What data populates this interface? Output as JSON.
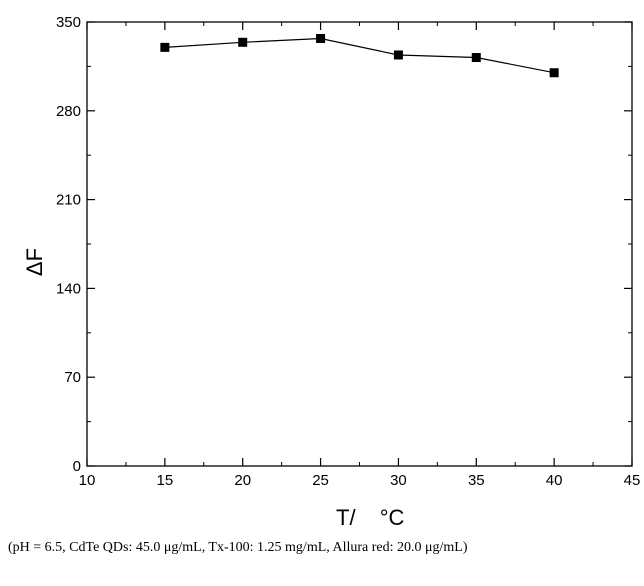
{
  "chart_data": {
    "type": "line",
    "xlabel_main": "T/",
    "xlabel_unit": "°C",
    "ylabel": "ΔF",
    "xlim": [
      10,
      45
    ],
    "ylim": [
      0,
      350
    ],
    "xticks": [
      10,
      15,
      20,
      25,
      30,
      35,
      40,
      45
    ],
    "yticks": [
      0,
      70,
      140,
      210,
      280,
      350
    ],
    "grid": false,
    "marker": "square",
    "series": [
      {
        "x": [
          15,
          20,
          25,
          30,
          35,
          40
        ],
        "y": [
          330,
          334,
          337,
          324,
          322,
          310
        ]
      }
    ]
  },
  "caption": "(pH = 6.5, CdTe QDs: 45.0 μg/mL, Tx-100: 1.25 mg/mL, Allura red: 20.0 μg/mL)"
}
